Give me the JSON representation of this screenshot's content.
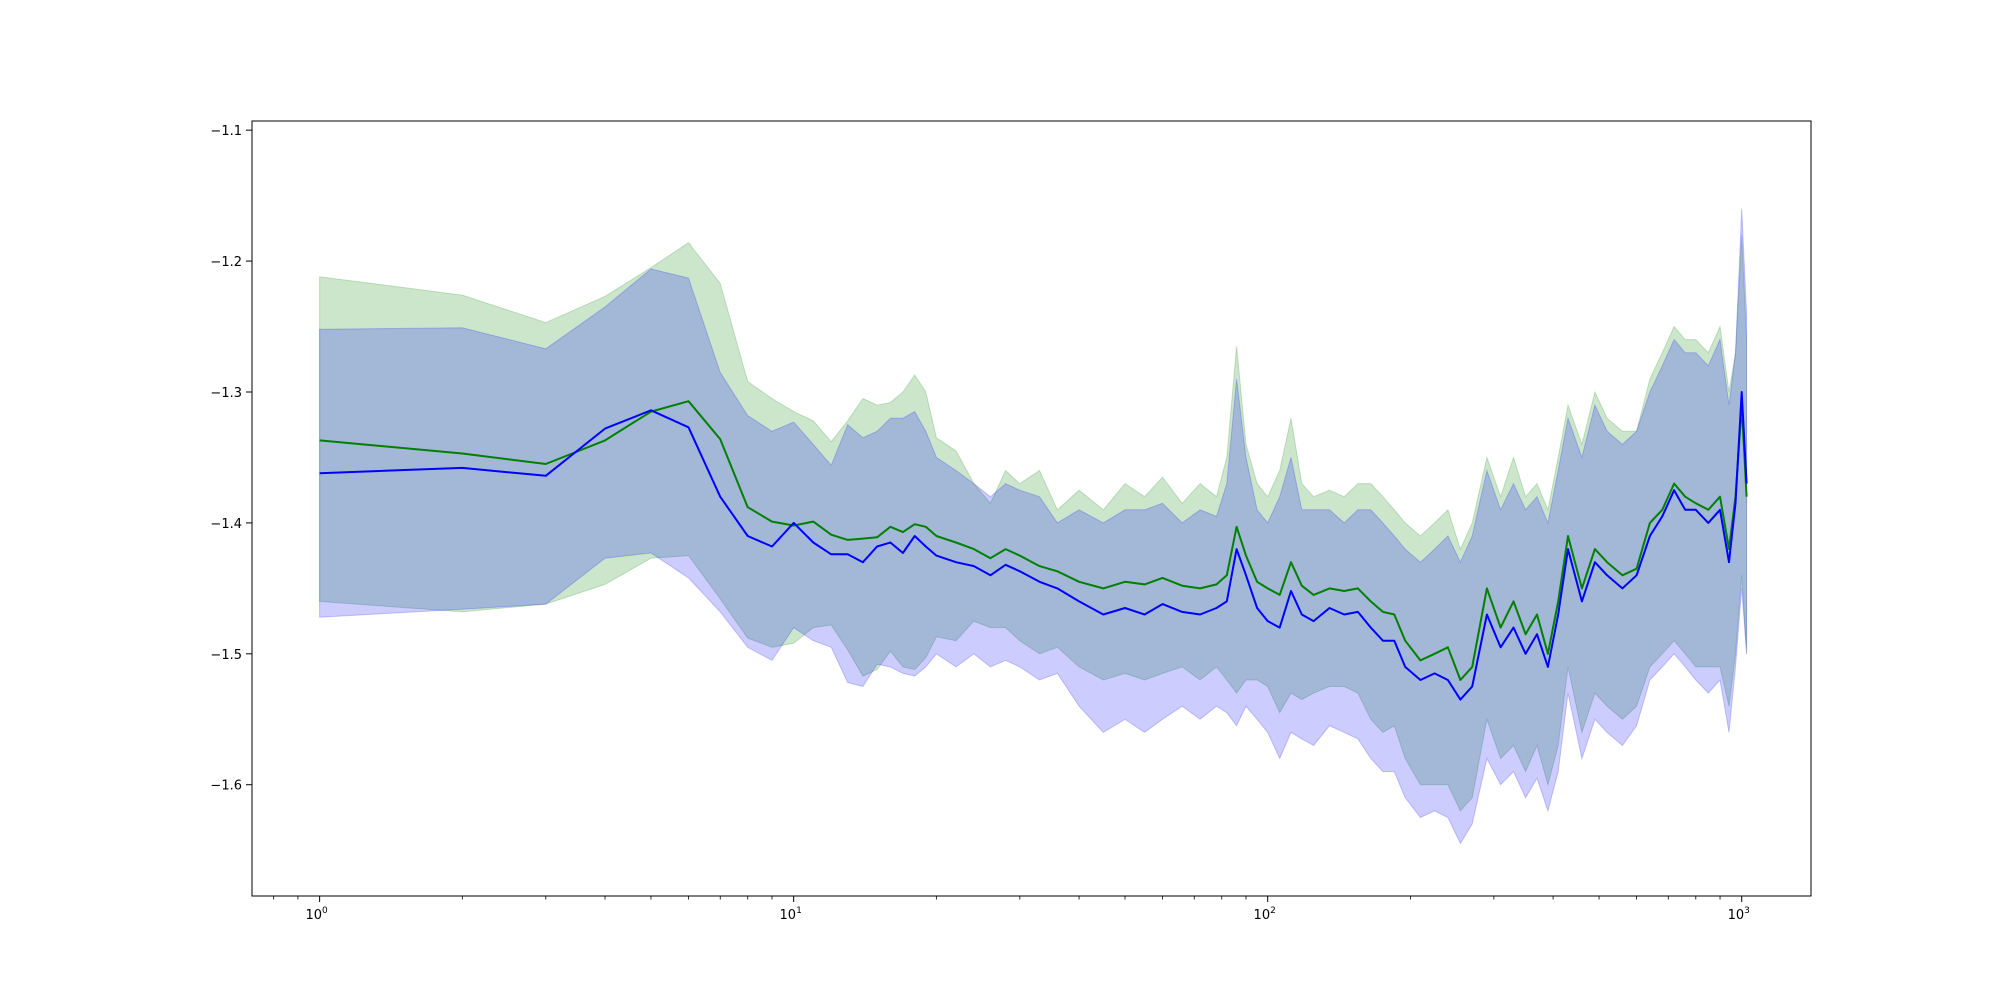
{
  "chart_data": {
    "type": "line",
    "title": "",
    "xlabel": "",
    "ylabel": "",
    "xscale": "log",
    "xlim": [
      0.72,
      1400
    ],
    "ylim": [
      -1.685,
      -1.093
    ],
    "grid": false,
    "legend": "none",
    "colors": {
      "green_line": "#008000",
      "green_band": "#008000",
      "blue_line": "#0000ff",
      "blue_band": "#0000ff"
    },
    "yticks": [
      -1.6,
      -1.5,
      -1.4,
      -1.3,
      -1.2,
      -1.1
    ],
    "ytick_labels": [
      "−1.6",
      "−1.5",
      "−1.4",
      "−1.3",
      "−1.2",
      "−1.1"
    ],
    "xticks": [
      {
        "value": 1,
        "base": "10",
        "exp": "0"
      },
      {
        "value": 10,
        "base": "10",
        "exp": "1"
      },
      {
        "value": 100,
        "base": "10",
        "exp": "2"
      },
      {
        "value": 1000,
        "base": "10",
        "exp": "3"
      }
    ],
    "series": [
      {
        "color": "#008000",
        "points": [
          [
            1,
            -1.337,
            -1.212,
            -1.46
          ],
          [
            2,
            -1.347,
            -1.226,
            -1.468
          ],
          [
            3,
            -1.355,
            -1.247,
            -1.462
          ],
          [
            4,
            -1.337,
            -1.227,
            -1.447
          ],
          [
            5,
            -1.315,
            -1.205,
            -1.427
          ],
          [
            6,
            -1.307,
            -1.186,
            -1.425
          ],
          [
            7,
            -1.336,
            -1.217,
            -1.458
          ],
          [
            8,
            -1.388,
            -1.292,
            -1.488
          ],
          [
            9,
            -1.399,
            -1.305,
            -1.495
          ],
          [
            10,
            -1.402,
            -1.315,
            -1.492
          ],
          [
            11,
            -1.399,
            -1.322,
            -1.48
          ],
          [
            12,
            -1.409,
            -1.338,
            -1.478
          ],
          [
            13,
            -1.413,
            -1.322,
            -1.497
          ],
          [
            14,
            -1.412,
            -1.305,
            -1.517
          ],
          [
            15,
            -1.411,
            -1.31,
            -1.512
          ],
          [
            16,
            -1.403,
            -1.308,
            -1.498
          ],
          [
            17,
            -1.407,
            -1.3,
            -1.51
          ],
          [
            18,
            -1.401,
            -1.287,
            -1.512
          ],
          [
            19,
            -1.403,
            -1.3,
            -1.503
          ],
          [
            20,
            -1.41,
            -1.335,
            -1.487
          ],
          [
            22,
            -1.415,
            -1.345,
            -1.49
          ],
          [
            24,
            -1.42,
            -1.37,
            -1.475
          ],
          [
            26,
            -1.427,
            -1.385,
            -1.48
          ],
          [
            28,
            -1.42,
            -1.36,
            -1.48
          ],
          [
            30,
            -1.425,
            -1.37,
            -1.49
          ],
          [
            33,
            -1.433,
            -1.36,
            -1.5
          ],
          [
            36,
            -1.437,
            -1.39,
            -1.495
          ],
          [
            40,
            -1.445,
            -1.375,
            -1.51
          ],
          [
            45,
            -1.45,
            -1.39,
            -1.52
          ],
          [
            50,
            -1.445,
            -1.37,
            -1.515
          ],
          [
            55,
            -1.447,
            -1.38,
            -1.52
          ],
          [
            60,
            -1.442,
            -1.365,
            -1.515
          ],
          [
            66,
            -1.448,
            -1.385,
            -1.51
          ],
          [
            72,
            -1.45,
            -1.37,
            -1.52
          ],
          [
            78,
            -1.447,
            -1.38,
            -1.51
          ],
          [
            82,
            -1.44,
            -1.35,
            -1.52
          ],
          [
            86,
            -1.403,
            -1.265,
            -1.53
          ],
          [
            90,
            -1.425,
            -1.34,
            -1.52
          ],
          [
            95,
            -1.445,
            -1.37,
            -1.52
          ],
          [
            100,
            -1.45,
            -1.38,
            -1.525
          ],
          [
            106,
            -1.455,
            -1.36,
            -1.545
          ],
          [
            112,
            -1.43,
            -1.32,
            -1.53
          ],
          [
            118,
            -1.448,
            -1.37,
            -1.535
          ],
          [
            125,
            -1.455,
            -1.38,
            -1.53
          ],
          [
            135,
            -1.45,
            -1.375,
            -1.525
          ],
          [
            145,
            -1.452,
            -1.38,
            -1.525
          ],
          [
            155,
            -1.45,
            -1.37,
            -1.53
          ],
          [
            165,
            -1.46,
            -1.37,
            -1.55
          ],
          [
            175,
            -1.468,
            -1.38,
            -1.56
          ],
          [
            185,
            -1.47,
            -1.39,
            -1.555
          ],
          [
            195,
            -1.49,
            -1.4,
            -1.58
          ],
          [
            210,
            -1.505,
            -1.41,
            -1.6
          ],
          [
            225,
            -1.5,
            -1.4,
            -1.6
          ],
          [
            240,
            -1.495,
            -1.39,
            -1.6
          ],
          [
            255,
            -1.52,
            -1.42,
            -1.62
          ],
          [
            270,
            -1.51,
            -1.4,
            -1.61
          ],
          [
            290,
            -1.45,
            -1.35,
            -1.55
          ],
          [
            310,
            -1.48,
            -1.38,
            -1.58
          ],
          [
            330,
            -1.46,
            -1.35,
            -1.57
          ],
          [
            350,
            -1.485,
            -1.38,
            -1.59
          ],
          [
            370,
            -1.47,
            -1.37,
            -1.57
          ],
          [
            390,
            -1.5,
            -1.39,
            -1.6
          ],
          [
            410,
            -1.46,
            -1.35,
            -1.57
          ],
          [
            430,
            -1.41,
            -1.31,
            -1.51
          ],
          [
            460,
            -1.45,
            -1.34,
            -1.56
          ],
          [
            490,
            -1.42,
            -1.3,
            -1.53
          ],
          [
            520,
            -1.43,
            -1.32,
            -1.54
          ],
          [
            560,
            -1.44,
            -1.33,
            -1.55
          ],
          [
            600,
            -1.435,
            -1.33,
            -1.54
          ],
          [
            640,
            -1.4,
            -1.29,
            -1.51
          ],
          [
            680,
            -1.39,
            -1.27,
            -1.5
          ],
          [
            720,
            -1.37,
            -1.25,
            -1.49
          ],
          [
            760,
            -1.38,
            -1.26,
            -1.5
          ],
          [
            800,
            -1.385,
            -1.26,
            -1.51
          ],
          [
            850,
            -1.39,
            -1.27,
            -1.51
          ],
          [
            900,
            -1.38,
            -1.25,
            -1.51
          ],
          [
            940,
            -1.42,
            -1.3,
            -1.54
          ],
          [
            970,
            -1.38,
            -1.27,
            -1.5
          ],
          [
            1000,
            -1.31,
            -1.18,
            -1.44
          ],
          [
            1024,
            -1.38,
            -1.26,
            -1.5
          ]
        ]
      },
      {
        "color": "#0000ff",
        "points": [
          [
            1,
            -1.362,
            -1.252,
            -1.472
          ],
          [
            2,
            -1.358,
            -1.251,
            -1.466
          ],
          [
            3,
            -1.364,
            -1.267,
            -1.462
          ],
          [
            4,
            -1.328,
            -1.235,
            -1.427
          ],
          [
            5,
            -1.314,
            -1.206,
            -1.423
          ],
          [
            6,
            -1.327,
            -1.213,
            -1.442
          ],
          [
            7,
            -1.38,
            -1.285,
            -1.468
          ],
          [
            8,
            -1.41,
            -1.318,
            -1.495
          ],
          [
            9,
            -1.418,
            -1.33,
            -1.505
          ],
          [
            10,
            -1.4,
            -1.323,
            -1.48
          ],
          [
            11,
            -1.415,
            -1.34,
            -1.49
          ],
          [
            12,
            -1.424,
            -1.356,
            -1.495
          ],
          [
            13,
            -1.424,
            -1.325,
            -1.522
          ],
          [
            14,
            -1.43,
            -1.335,
            -1.525
          ],
          [
            15,
            -1.418,
            -1.33,
            -1.508
          ],
          [
            16,
            -1.415,
            -1.32,
            -1.51
          ],
          [
            17,
            -1.423,
            -1.32,
            -1.515
          ],
          [
            18,
            -1.41,
            -1.315,
            -1.517
          ],
          [
            19,
            -1.418,
            -1.33,
            -1.51
          ],
          [
            20,
            -1.425,
            -1.35,
            -1.5
          ],
          [
            22,
            -1.43,
            -1.36,
            -1.51
          ],
          [
            24,
            -1.433,
            -1.37,
            -1.5
          ],
          [
            26,
            -1.44,
            -1.38,
            -1.51
          ],
          [
            28,
            -1.432,
            -1.37,
            -1.505
          ],
          [
            30,
            -1.437,
            -1.375,
            -1.51
          ],
          [
            33,
            -1.445,
            -1.38,
            -1.52
          ],
          [
            36,
            -1.45,
            -1.4,
            -1.515
          ],
          [
            40,
            -1.46,
            -1.39,
            -1.54
          ],
          [
            45,
            -1.47,
            -1.4,
            -1.56
          ],
          [
            50,
            -1.465,
            -1.39,
            -1.55
          ],
          [
            55,
            -1.47,
            -1.39,
            -1.56
          ],
          [
            60,
            -1.462,
            -1.385,
            -1.55
          ],
          [
            66,
            -1.468,
            -1.4,
            -1.54
          ],
          [
            72,
            -1.47,
            -1.39,
            -1.55
          ],
          [
            78,
            -1.465,
            -1.395,
            -1.54
          ],
          [
            82,
            -1.46,
            -1.37,
            -1.545
          ],
          [
            86,
            -1.42,
            -1.29,
            -1.555
          ],
          [
            90,
            -1.44,
            -1.35,
            -1.54
          ],
          [
            95,
            -1.465,
            -1.39,
            -1.55
          ],
          [
            100,
            -1.475,
            -1.4,
            -1.56
          ],
          [
            106,
            -1.48,
            -1.38,
            -1.58
          ],
          [
            112,
            -1.452,
            -1.35,
            -1.56
          ],
          [
            118,
            -1.47,
            -1.39,
            -1.565
          ],
          [
            125,
            -1.475,
            -1.39,
            -1.57
          ],
          [
            135,
            -1.465,
            -1.39,
            -1.555
          ],
          [
            145,
            -1.47,
            -1.4,
            -1.56
          ],
          [
            155,
            -1.468,
            -1.39,
            -1.565
          ],
          [
            165,
            -1.48,
            -1.39,
            -1.58
          ],
          [
            175,
            -1.49,
            -1.4,
            -1.59
          ],
          [
            185,
            -1.49,
            -1.41,
            -1.59
          ],
          [
            195,
            -1.51,
            -1.42,
            -1.61
          ],
          [
            210,
            -1.52,
            -1.43,
            -1.625
          ],
          [
            225,
            -1.515,
            -1.42,
            -1.62
          ],
          [
            240,
            -1.52,
            -1.41,
            -1.625
          ],
          [
            255,
            -1.535,
            -1.43,
            -1.645
          ],
          [
            270,
            -1.525,
            -1.41,
            -1.63
          ],
          [
            290,
            -1.47,
            -1.36,
            -1.58
          ],
          [
            310,
            -1.495,
            -1.39,
            -1.6
          ],
          [
            330,
            -1.48,
            -1.37,
            -1.59
          ],
          [
            350,
            -1.5,
            -1.39,
            -1.61
          ],
          [
            370,
            -1.485,
            -1.38,
            -1.595
          ],
          [
            390,
            -1.51,
            -1.4,
            -1.62
          ],
          [
            410,
            -1.47,
            -1.36,
            -1.59
          ],
          [
            430,
            -1.42,
            -1.32,
            -1.53
          ],
          [
            460,
            -1.46,
            -1.35,
            -1.58
          ],
          [
            490,
            -1.43,
            -1.31,
            -1.55
          ],
          [
            520,
            -1.44,
            -1.33,
            -1.56
          ],
          [
            560,
            -1.45,
            -1.34,
            -1.57
          ],
          [
            600,
            -1.44,
            -1.33,
            -1.555
          ],
          [
            640,
            -1.41,
            -1.3,
            -1.52
          ],
          [
            680,
            -1.395,
            -1.28,
            -1.51
          ],
          [
            720,
            -1.375,
            -1.26,
            -1.5
          ],
          [
            760,
            -1.39,
            -1.27,
            -1.51
          ],
          [
            800,
            -1.39,
            -1.27,
            -1.52
          ],
          [
            850,
            -1.4,
            -1.28,
            -1.53
          ],
          [
            900,
            -1.39,
            -1.26,
            -1.52
          ],
          [
            940,
            -1.43,
            -1.31,
            -1.56
          ],
          [
            970,
            -1.385,
            -1.27,
            -1.51
          ],
          [
            1000,
            -1.3,
            -1.16,
            -1.45
          ],
          [
            1024,
            -1.37,
            -1.24,
            -1.5
          ]
        ]
      }
    ]
  }
}
